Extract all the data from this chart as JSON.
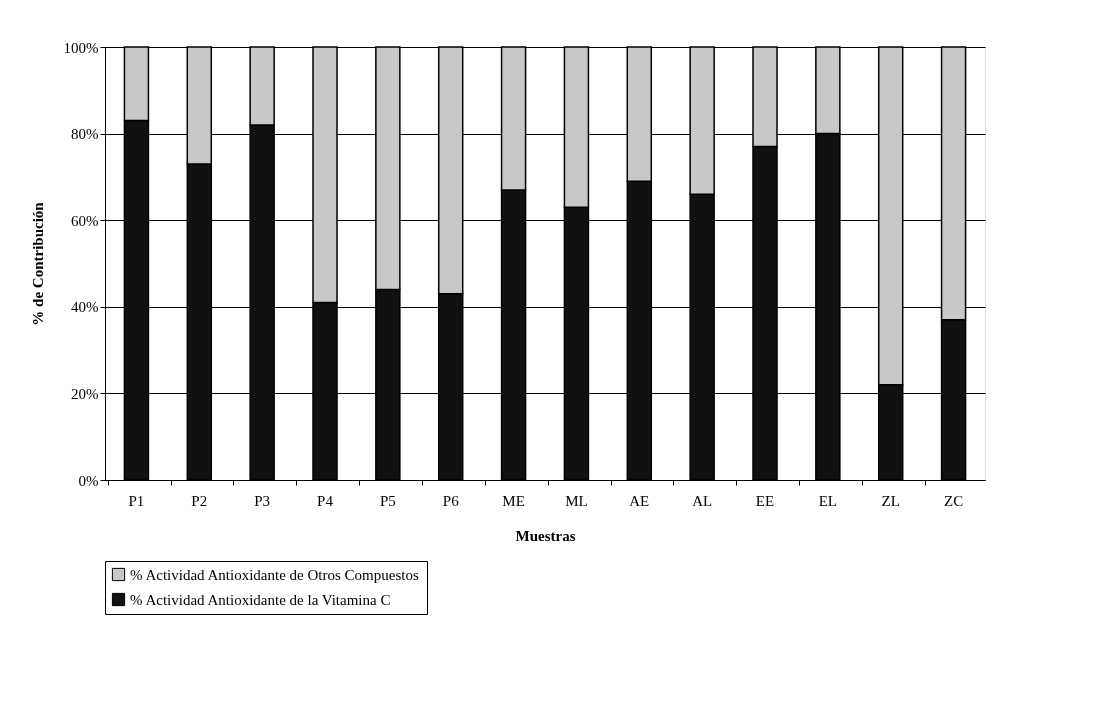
{
  "chart_data": {
    "type": "bar",
    "stacked": true,
    "xlabel": "Muestras",
    "ylabel": "% de Contribución",
    "categories": [
      "P1",
      "P2",
      "P3",
      "P4",
      "P5",
      "P6",
      "ME",
      "ML",
      "AE",
      "AL",
      "EE",
      "EL",
      "ZL",
      "ZC"
    ],
    "series": [
      {
        "name": "% Actividad Antioxidante de la Vitamina C",
        "color": "#111111",
        "values": [
          83,
          73,
          82,
          41,
          44,
          43,
          67,
          63,
          69,
          66,
          77,
          80,
          22,
          37
        ]
      },
      {
        "name": "% Actividad Antioxidante de Otros Compuestos",
        "color": "#c8c8c8",
        "values": [
          17,
          27,
          18,
          59,
          56,
          57,
          33,
          37,
          31,
          34,
          23,
          20,
          78,
          63
        ]
      }
    ],
    "ylim": [
      0,
      100
    ],
    "yticks": [
      {
        "value": 0,
        "label": "0%"
      },
      {
        "value": 20,
        "label": "20%"
      },
      {
        "value": 40,
        "label": "40%"
      },
      {
        "value": 60,
        "label": "60%"
      },
      {
        "value": 80,
        "label": "80%"
      },
      {
        "value": 100,
        "label": "100%"
      }
    ],
    "grid": "y",
    "legend": "bottom"
  }
}
